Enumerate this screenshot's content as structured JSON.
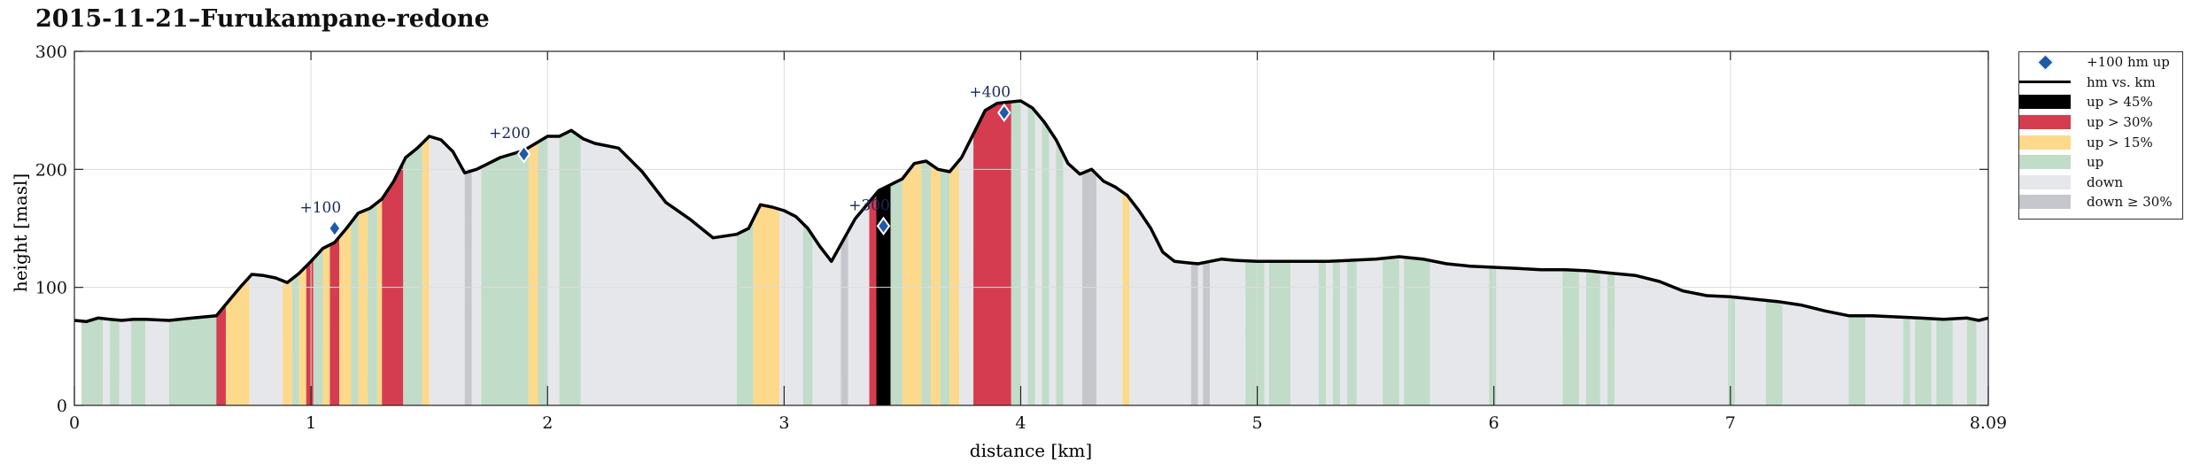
{
  "title": "2015-11-21–Furukampane-redone",
  "chart_data": {
    "type": "area",
    "title": "2015-11-21–Furukampane-redone",
    "xlabel": "distance [km]",
    "ylabel": "height [masl]",
    "xlim": [
      0,
      8.09
    ],
    "ylim": [
      0,
      300
    ],
    "x_ticks": [
      "0",
      "1",
      "2",
      "3",
      "4",
      "5",
      "6",
      "7",
      "8.09"
    ],
    "y_ticks": [
      "0",
      "100",
      "200",
      "300"
    ],
    "grid": true,
    "legend_position": "outside-right",
    "series": [
      {
        "name": "hm vs. km",
        "x": [
          0,
          0.05,
          0.1,
          0.15,
          0.2,
          0.25,
          0.3,
          0.4,
          0.5,
          0.55,
          0.6,
          0.65,
          0.7,
          0.75,
          0.8,
          0.85,
          0.9,
          0.95,
          1.0,
          1.05,
          1.1,
          1.15,
          1.2,
          1.25,
          1.3,
          1.35,
          1.4,
          1.45,
          1.5,
          1.55,
          1.6,
          1.65,
          1.7,
          1.75,
          1.8,
          1.85,
          1.9,
          1.95,
          2.0,
          2.05,
          2.1,
          2.15,
          2.2,
          2.3,
          2.4,
          2.5,
          2.6,
          2.7,
          2.8,
          2.85,
          2.9,
          2.95,
          3.0,
          3.05,
          3.1,
          3.15,
          3.2,
          3.25,
          3.3,
          3.35,
          3.4,
          3.45,
          3.5,
          3.55,
          3.6,
          3.65,
          3.7,
          3.75,
          3.8,
          3.85,
          3.9,
          3.95,
          4.0,
          4.05,
          4.1,
          4.15,
          4.2,
          4.25,
          4.3,
          4.35,
          4.4,
          4.45,
          4.5,
          4.55,
          4.6,
          4.65,
          4.7,
          4.75,
          4.8,
          4.85,
          4.9,
          5.0,
          5.1,
          5.2,
          5.3,
          5.4,
          5.5,
          5.6,
          5.7,
          5.8,
          5.9,
          6.0,
          6.1,
          6.2,
          6.3,
          6.4,
          6.5,
          6.6,
          6.7,
          6.8,
          6.9,
          7.0,
          7.1,
          7.2,
          7.3,
          7.4,
          7.5,
          7.6,
          7.7,
          7.8,
          7.9,
          8.0,
          8.05,
          8.09
        ],
        "y": [
          72,
          71,
          74,
          73,
          72,
          73,
          73,
          72,
          74,
          75,
          76,
          88,
          100,
          111,
          110,
          108,
          104,
          112,
          122,
          133,
          138,
          150,
          163,
          167,
          175,
          190,
          210,
          218,
          228,
          225,
          215,
          197,
          200,
          205,
          210,
          213,
          216,
          222,
          228,
          228,
          233,
          226,
          222,
          218,
          198,
          172,
          158,
          142,
          145,
          150,
          170,
          168,
          165,
          160,
          150,
          135,
          122,
          140,
          158,
          170,
          182,
          187,
          192,
          205,
          207,
          200,
          198,
          210,
          230,
          250,
          256,
          257,
          258,
          252,
          240,
          225,
          205,
          196,
          200,
          190,
          185,
          178,
          165,
          150,
          130,
          122,
          121,
          120,
          122,
          124,
          123,
          122,
          122,
          122,
          122,
          123,
          124,
          126,
          124,
          120,
          118,
          117,
          116,
          115,
          115,
          114,
          112,
          110,
          105,
          97,
          93,
          92,
          90,
          88,
          85,
          80,
          76,
          76,
          75,
          74,
          73,
          74,
          72,
          74
        ]
      },
      {
        "name": "+100 hm up",
        "markers": [
          {
            "x": 1.1,
            "y": 150,
            "label": "+100"
          },
          {
            "x": 1.9,
            "y": 213,
            "label": "+200"
          },
          {
            "x": 3.42,
            "y": 152,
            "label": "+300"
          },
          {
            "x": 3.93,
            "y": 248,
            "label": "+400"
          }
        ]
      }
    ],
    "segments": [
      {
        "x0": 0.03,
        "x1": 0.12,
        "cls": "up"
      },
      {
        "x0": 0.12,
        "x1": 0.15,
        "cls": "down"
      },
      {
        "x0": 0.15,
        "x1": 0.19,
        "cls": "up"
      },
      {
        "x0": 0.19,
        "x1": 0.24,
        "cls": "down"
      },
      {
        "x0": 0.24,
        "x1": 0.3,
        "cls": "up"
      },
      {
        "x0": 0.3,
        "x1": 0.4,
        "cls": "down"
      },
      {
        "x0": 0.4,
        "x1": 0.6,
        "cls": "up"
      },
      {
        "x0": 0.6,
        "x1": 0.64,
        "cls": "up > 30%"
      },
      {
        "x0": 0.64,
        "x1": 0.74,
        "cls": "up > 15%"
      },
      {
        "x0": 0.74,
        "x1": 0.88,
        "cls": "down"
      },
      {
        "x0": 0.88,
        "x1": 0.92,
        "cls": "up > 15%"
      },
      {
        "x0": 0.92,
        "x1": 0.95,
        "cls": "up"
      },
      {
        "x0": 0.95,
        "x1": 0.98,
        "cls": "up > 15%"
      },
      {
        "x0": 0.98,
        "x1": 1.01,
        "cls": "up > 30%"
      },
      {
        "x0": 1.01,
        "x1": 1.05,
        "cls": "up"
      },
      {
        "x0": 1.05,
        "x1": 1.08,
        "cls": "up > 15%"
      },
      {
        "x0": 1.08,
        "x1": 1.12,
        "cls": "up > 30%"
      },
      {
        "x0": 1.12,
        "x1": 1.17,
        "cls": "up > 15%"
      },
      {
        "x0": 1.17,
        "x1": 1.2,
        "cls": "up"
      },
      {
        "x0": 1.2,
        "x1": 1.24,
        "cls": "up > 15%"
      },
      {
        "x0": 1.24,
        "x1": 1.28,
        "cls": "up"
      },
      {
        "x0": 1.28,
        "x1": 1.3,
        "cls": "up > 15%"
      },
      {
        "x0": 1.3,
        "x1": 1.39,
        "cls": "up > 30%"
      },
      {
        "x0": 1.39,
        "x1": 1.47,
        "cls": "up"
      },
      {
        "x0": 1.47,
        "x1": 1.5,
        "cls": "up > 15%"
      },
      {
        "x0": 1.5,
        "x1": 1.65,
        "cls": "down"
      },
      {
        "x0": 1.65,
        "x1": 1.68,
        "cls": "down ≥ 30%"
      },
      {
        "x0": 1.68,
        "x1": 1.72,
        "cls": "down"
      },
      {
        "x0": 1.72,
        "x1": 1.92,
        "cls": "up"
      },
      {
        "x0": 1.92,
        "x1": 1.96,
        "cls": "up > 15%"
      },
      {
        "x0": 1.96,
        "x1": 2.0,
        "cls": "up"
      },
      {
        "x0": 2.0,
        "x1": 2.05,
        "cls": "down"
      },
      {
        "x0": 2.05,
        "x1": 2.14,
        "cls": "up"
      },
      {
        "x0": 2.14,
        "x1": 2.8,
        "cls": "down"
      },
      {
        "x0": 2.8,
        "x1": 2.87,
        "cls": "up"
      },
      {
        "x0": 2.87,
        "x1": 2.98,
        "cls": "up > 15%"
      },
      {
        "x0": 2.98,
        "x1": 3.08,
        "cls": "down"
      },
      {
        "x0": 3.08,
        "x1": 3.12,
        "cls": "up"
      },
      {
        "x0": 3.12,
        "x1": 3.24,
        "cls": "down"
      },
      {
        "x0": 3.24,
        "x1": 3.27,
        "cls": "down ≥ 30%"
      },
      {
        "x0": 3.27,
        "x1": 3.36,
        "cls": "down"
      },
      {
        "x0": 3.36,
        "x1": 3.39,
        "cls": "up > 30%"
      },
      {
        "x0": 3.39,
        "x1": 3.45,
        "cls": "up > 45%"
      },
      {
        "x0": 3.45,
        "x1": 3.5,
        "cls": "up"
      },
      {
        "x0": 3.5,
        "x1": 3.58,
        "cls": "up > 15%"
      },
      {
        "x0": 3.58,
        "x1": 3.62,
        "cls": "up"
      },
      {
        "x0": 3.62,
        "x1": 3.66,
        "cls": "up > 15%"
      },
      {
        "x0": 3.66,
        "x1": 3.7,
        "cls": "up"
      },
      {
        "x0": 3.7,
        "x1": 3.74,
        "cls": "up > 15%"
      },
      {
        "x0": 3.74,
        "x1": 3.8,
        "cls": "down"
      },
      {
        "x0": 3.8,
        "x1": 3.96,
        "cls": "up > 30%"
      },
      {
        "x0": 3.96,
        "x1": 4.0,
        "cls": "up"
      },
      {
        "x0": 4.0,
        "x1": 4.03,
        "cls": "down"
      },
      {
        "x0": 4.03,
        "x1": 4.06,
        "cls": "up"
      },
      {
        "x0": 4.06,
        "x1": 4.09,
        "cls": "down"
      },
      {
        "x0": 4.09,
        "x1": 4.12,
        "cls": "up"
      },
      {
        "x0": 4.12,
        "x1": 4.15,
        "cls": "down"
      },
      {
        "x0": 4.15,
        "x1": 4.18,
        "cls": "up"
      },
      {
        "x0": 4.18,
        "x1": 4.26,
        "cls": "down"
      },
      {
        "x0": 4.26,
        "x1": 4.32,
        "cls": "down ≥ 30%"
      },
      {
        "x0": 4.32,
        "x1": 4.43,
        "cls": "down"
      },
      {
        "x0": 4.43,
        "x1": 4.46,
        "cls": "up > 15%"
      },
      {
        "x0": 4.46,
        "x1": 4.72,
        "cls": "down"
      },
      {
        "x0": 4.72,
        "x1": 4.75,
        "cls": "down ≥ 30%"
      },
      {
        "x0": 4.75,
        "x1": 4.77,
        "cls": "down"
      },
      {
        "x0": 4.77,
        "x1": 4.8,
        "cls": "down ≥ 30%"
      },
      {
        "x0": 4.8,
        "x1": 4.95,
        "cls": "down"
      },
      {
        "x0": 4.95,
        "x1": 5.03,
        "cls": "up"
      },
      {
        "x0": 5.03,
        "x1": 5.05,
        "cls": "down"
      },
      {
        "x0": 5.05,
        "x1": 5.14,
        "cls": "up"
      },
      {
        "x0": 5.14,
        "x1": 5.26,
        "cls": "down"
      },
      {
        "x0": 5.26,
        "x1": 5.29,
        "cls": "up"
      },
      {
        "x0": 5.29,
        "x1": 5.32,
        "cls": "down"
      },
      {
        "x0": 5.32,
        "x1": 5.35,
        "cls": "up"
      },
      {
        "x0": 5.35,
        "x1": 5.38,
        "cls": "down"
      },
      {
        "x0": 5.38,
        "x1": 5.42,
        "cls": "up"
      },
      {
        "x0": 5.42,
        "x1": 5.53,
        "cls": "down"
      },
      {
        "x0": 5.53,
        "x1": 5.6,
        "cls": "up"
      },
      {
        "x0": 5.6,
        "x1": 5.62,
        "cls": "down"
      },
      {
        "x0": 5.62,
        "x1": 5.73,
        "cls": "up"
      },
      {
        "x0": 5.73,
        "x1": 5.98,
        "cls": "down"
      },
      {
        "x0": 5.98,
        "x1": 6.01,
        "cls": "up"
      },
      {
        "x0": 6.01,
        "x1": 6.29,
        "cls": "down"
      },
      {
        "x0": 6.29,
        "x1": 6.36,
        "cls": "up"
      },
      {
        "x0": 6.36,
        "x1": 6.39,
        "cls": "down"
      },
      {
        "x0": 6.39,
        "x1": 6.45,
        "cls": "up"
      },
      {
        "x0": 6.45,
        "x1": 6.48,
        "cls": "down"
      },
      {
        "x0": 6.48,
        "x1": 6.51,
        "cls": "up"
      },
      {
        "x0": 6.51,
        "x1": 6.99,
        "cls": "down"
      },
      {
        "x0": 6.99,
        "x1": 7.02,
        "cls": "up"
      },
      {
        "x0": 7.02,
        "x1": 7.15,
        "cls": "down"
      },
      {
        "x0": 7.15,
        "x1": 7.22,
        "cls": "up"
      },
      {
        "x0": 7.22,
        "x1": 7.5,
        "cls": "down"
      },
      {
        "x0": 7.5,
        "x1": 7.57,
        "cls": "up"
      },
      {
        "x0": 7.57,
        "x1": 7.73,
        "cls": "down"
      },
      {
        "x0": 7.73,
        "x1": 7.76,
        "cls": "up"
      },
      {
        "x0": 7.76,
        "x1": 7.78,
        "cls": "down"
      },
      {
        "x0": 7.78,
        "x1": 7.85,
        "cls": "up"
      },
      {
        "x0": 7.85,
        "x1": 7.87,
        "cls": "down"
      },
      {
        "x0": 7.87,
        "x1": 7.94,
        "cls": "up"
      },
      {
        "x0": 7.94,
        "x1": 8.0,
        "cls": "down"
      },
      {
        "x0": 8.0,
        "x1": 8.04,
        "cls": "up"
      },
      {
        "x0": 8.04,
        "x1": 8.09,
        "cls": "down"
      }
    ],
    "colors": {
      "up > 45%": "#000000",
      "up > 30%": "#d63c4f",
      "up > 15%": "#fcd98b",
      "up": "#c1dcc8",
      "down": "#e6e7ea",
      "down ≥ 30%": "#c6c7cc",
      "line": "#000000",
      "marker": "#1f5aa8",
      "grid": "#dcdcdc"
    }
  },
  "legend": {
    "items": [
      {
        "label": "+100 hm up",
        "kind": "diamond",
        "icon": "diamond-icon"
      },
      {
        "label": "hm vs. km",
        "kind": "line",
        "color": "#000000"
      },
      {
        "label": "up > 45%",
        "kind": "box",
        "color": "#000000"
      },
      {
        "label": "up > 30%",
        "kind": "box",
        "color": "#d63c4f"
      },
      {
        "label": "up > 15%",
        "kind": "box",
        "color": "#fcd98b"
      },
      {
        "label": "up",
        "kind": "box",
        "color": "#c1dcc8"
      },
      {
        "label": "down",
        "kind": "box",
        "color": "#e6e7ea"
      },
      {
        "label": "down ≥ 30%",
        "kind": "box",
        "color": "#c6c7cc"
      }
    ]
  }
}
